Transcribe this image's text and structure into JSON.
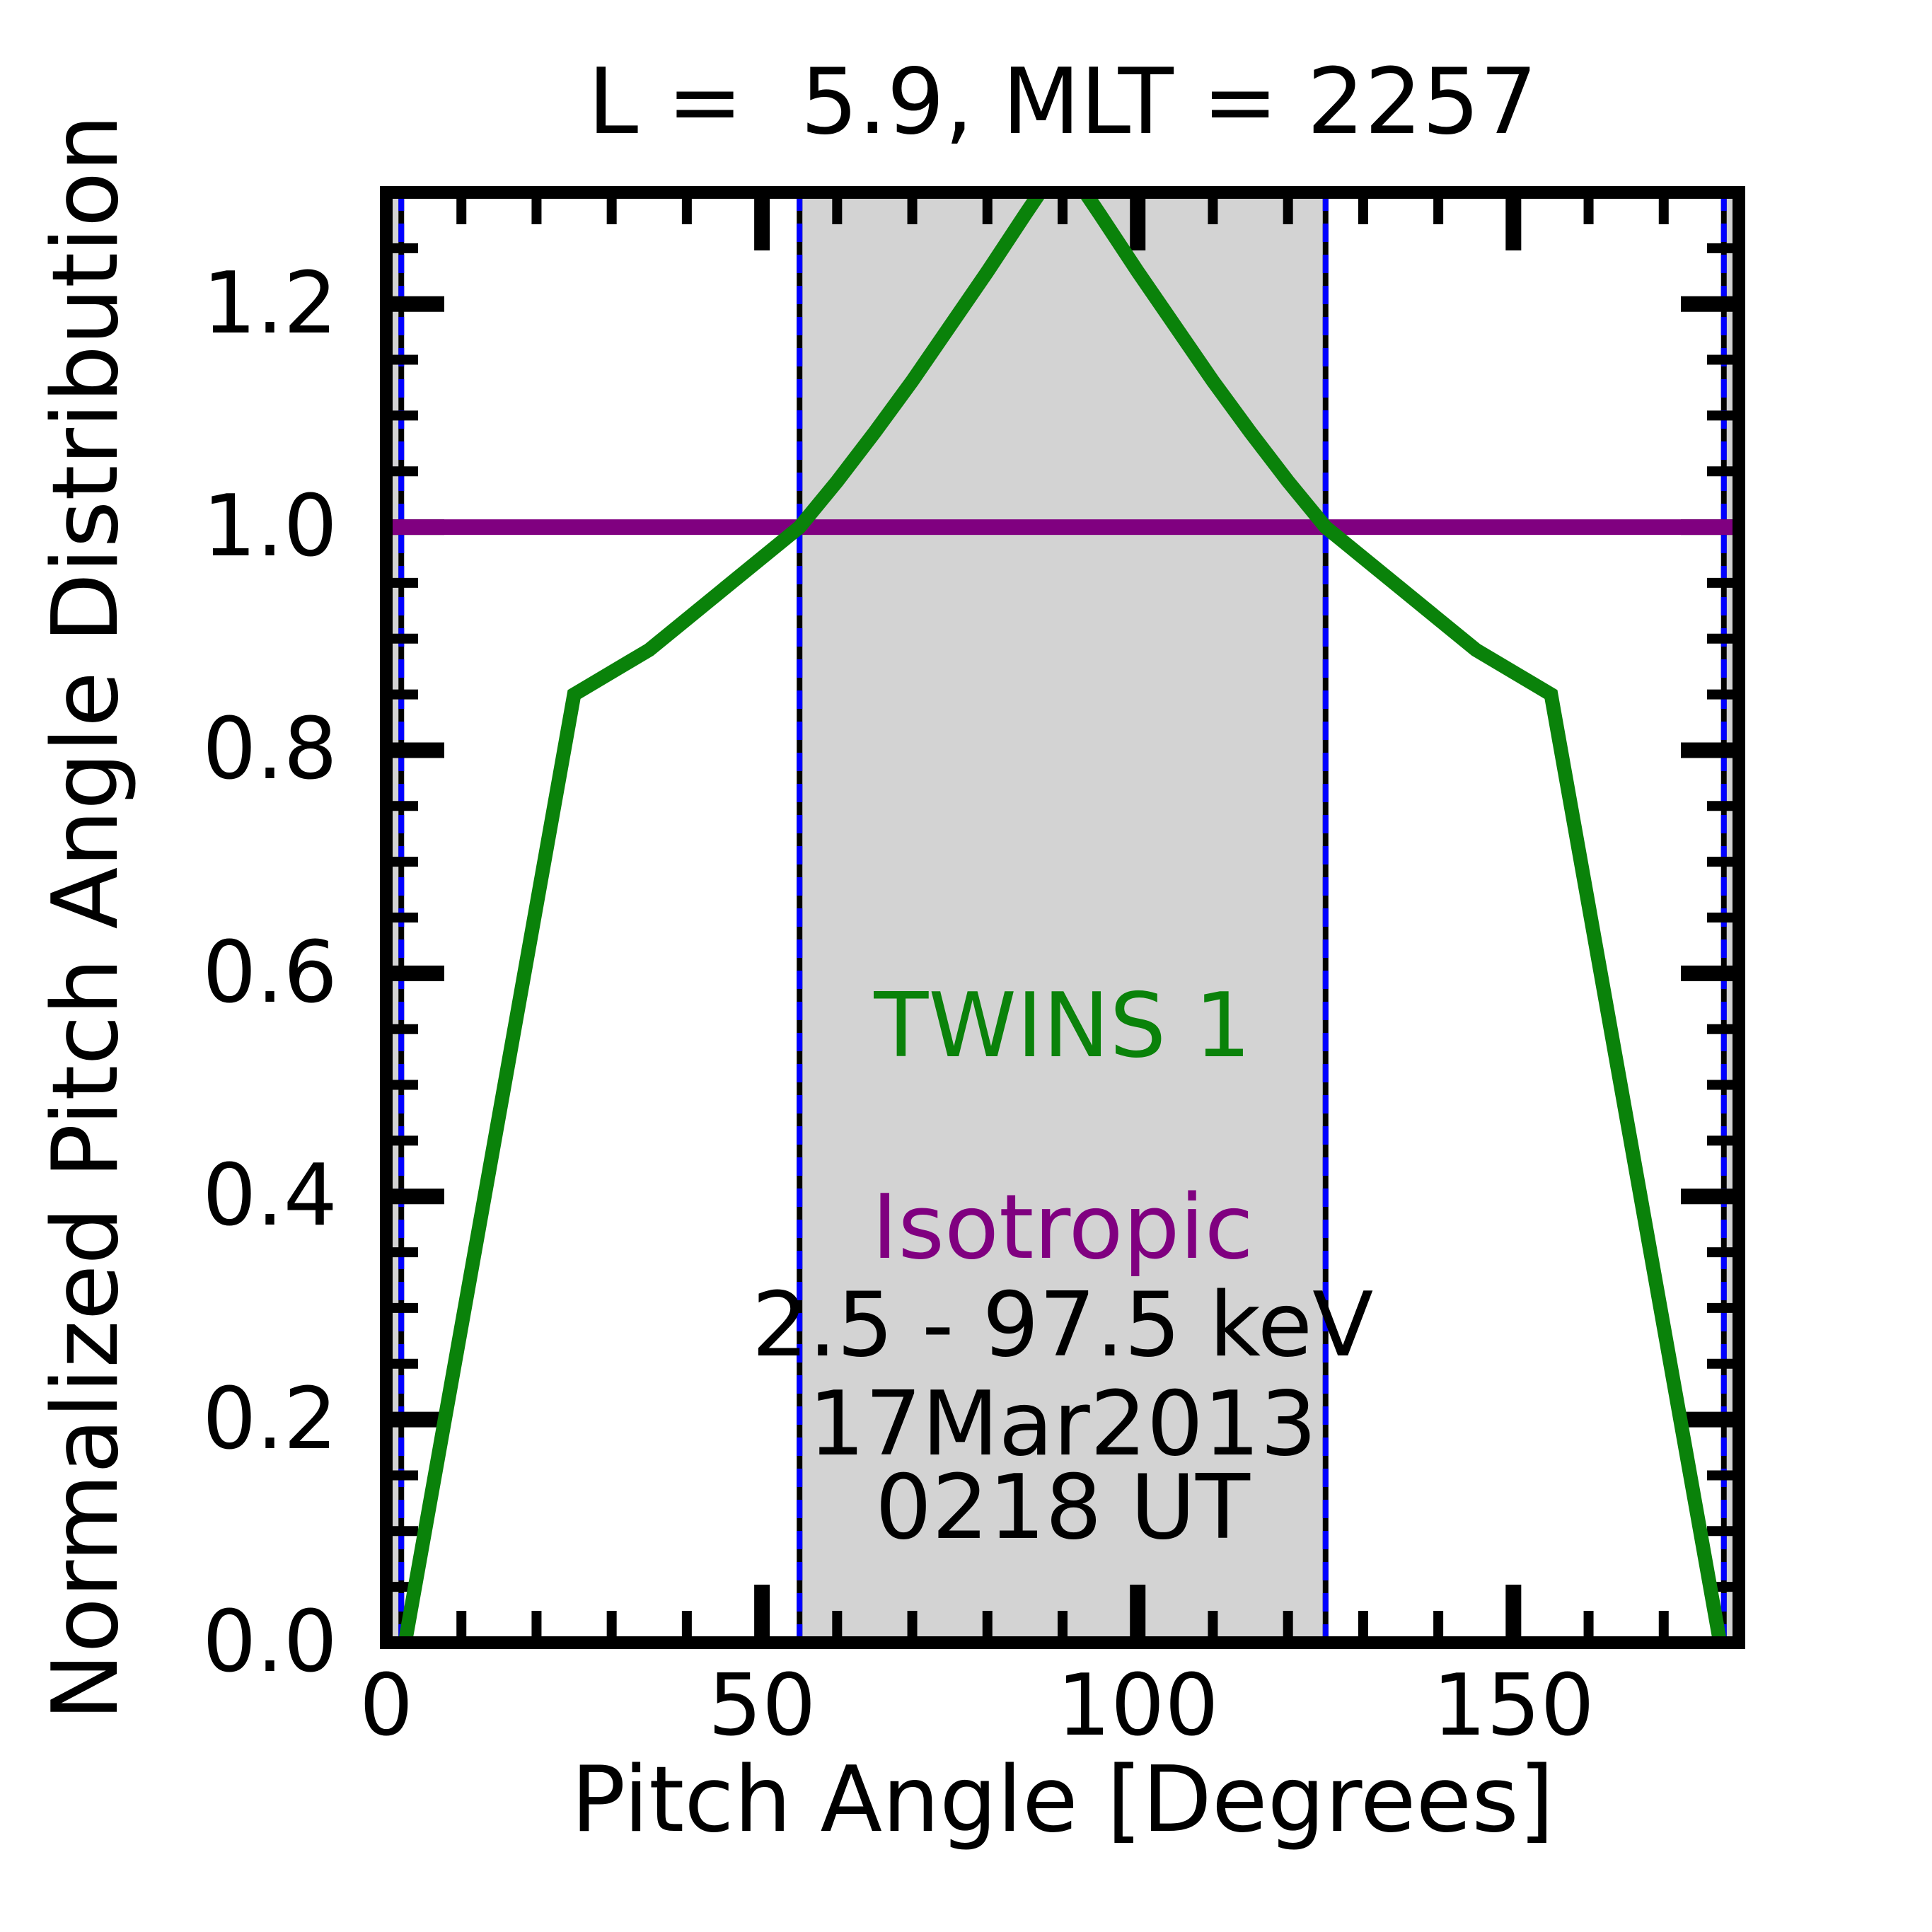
{
  "chart_data": {
    "type": "line",
    "title": "L =  5.9, MLT = 2257",
    "xlabel": "Pitch Angle [Degrees]",
    "ylabel": "Normalized Pitch Angle Distribution",
    "xlim": [
      0,
      180
    ],
    "ylim": [
      0,
      1.3
    ],
    "grid": false,
    "legend_position": "none",
    "x_ticks": {
      "major": [
        {
          "v": 0,
          "label": "0"
        },
        {
          "v": 50,
          "label": "50"
        },
        {
          "v": 100,
          "label": "100"
        },
        {
          "v": 150,
          "label": "150"
        }
      ],
      "minor_step": 10
    },
    "y_ticks": {
      "major": [
        {
          "v": 0.0,
          "label": "0.0"
        },
        {
          "v": 0.2,
          "label": "0.2"
        },
        {
          "v": 0.4,
          "label": "0.4"
        },
        {
          "v": 0.6,
          "label": "0.6"
        },
        {
          "v": 0.8,
          "label": "0.8"
        },
        {
          "v": 1.0,
          "label": "1.0"
        },
        {
          "v": 1.2,
          "label": "1.2"
        }
      ],
      "minor_step": 0.05
    },
    "shaded_regions": [
      {
        "x0": 0,
        "x1": 2,
        "color": "#d3d3d3"
      },
      {
        "x0": 55,
        "x1": 125,
        "color": "#d3d3d3"
      },
      {
        "x0": 178,
        "x1": 180,
        "color": "#d3d3d3"
      }
    ],
    "boundary_lines": {
      "x": [
        2,
        55,
        125,
        178
      ],
      "color": "#0000ff",
      "underlay_color": "#000000",
      "style": "dashed"
    },
    "series": [
      {
        "name": "Isotropic",
        "color": "#800080",
        "points": [
          [
            0,
            1.0
          ],
          [
            180,
            1.0
          ]
        ]
      },
      {
        "name": "TWINS 1",
        "color": "#0a820a",
        "points": [
          [
            2.5,
            0
          ],
          [
            25,
            0.85
          ],
          [
            35,
            0.89
          ],
          [
            45,
            0.945
          ],
          [
            55,
            1.0
          ],
          [
            60,
            1.041
          ],
          [
            65,
            1.085
          ],
          [
            70,
            1.131
          ],
          [
            75,
            1.18
          ],
          [
            80,
            1.229
          ],
          [
            85,
            1.28
          ],
          [
            90,
            1.33
          ],
          [
            95,
            1.28
          ],
          [
            100,
            1.229
          ],
          [
            105,
            1.18
          ],
          [
            110,
            1.131
          ],
          [
            115,
            1.085
          ],
          [
            120,
            1.041
          ],
          [
            125,
            1.0
          ],
          [
            135,
            0.945
          ],
          [
            145,
            0.89
          ],
          [
            155,
            0.85
          ],
          [
            177.5,
            0
          ]
        ]
      }
    ],
    "annotations": [
      {
        "text": "TWINS 1",
        "color": "#0a820a",
        "x": 90,
        "y": 0.553
      },
      {
        "text": "Isotropic",
        "color": "#800080",
        "x": 90,
        "y": 0.372
      },
      {
        "text": "2.5 - 97.5 keV",
        "color": "#000000",
        "x": 90,
        "y": 0.285
      },
      {
        "text": "17Mar2013",
        "color": "#000000",
        "x": 90,
        "y": 0.196
      },
      {
        "text": "0218 UT",
        "color": "#000000",
        "x": 90,
        "y": 0.121
      }
    ]
  },
  "colors": {
    "frame": "#000000",
    "background": "#ffffff",
    "shading": "#d3d3d3",
    "guide_blue": "#0000ff",
    "twins_green": "#0a820a",
    "isotropic_purple": "#800080"
  }
}
